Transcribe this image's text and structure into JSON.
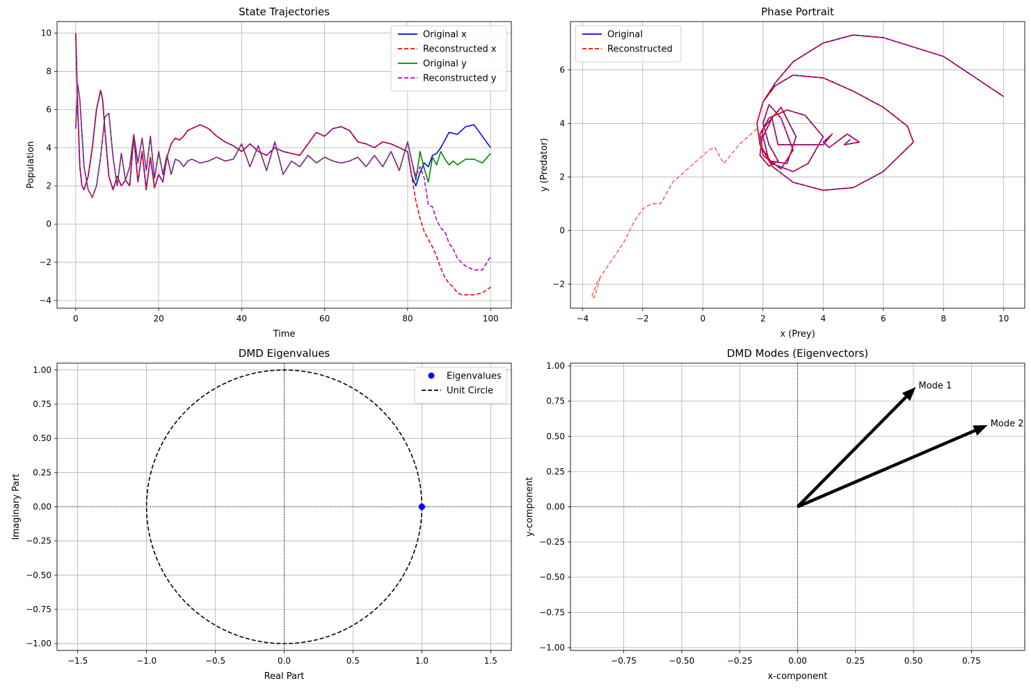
{
  "chart_data": [
    {
      "id": "state",
      "type": "line",
      "title": "State Trajectories",
      "xlabel": "Time",
      "ylabel": "Population",
      "xlim": [
        -4.5,
        105
      ],
      "ylim": [
        -4.4,
        10.6
      ],
      "xticks": [
        0,
        20,
        40,
        60,
        80,
        100
      ],
      "yticks": [
        -4,
        -2,
        0,
        2,
        4,
        6,
        8,
        10
      ],
      "grid": true,
      "legend": "top-right",
      "series": [
        {
          "name": "Original x",
          "color": "#0000ff",
          "dash": "solid",
          "x": [
            0,
            0.5,
            1,
            1.5,
            2,
            3,
            4,
            5,
            6,
            6.5,
            7,
            8,
            9,
            10,
            11,
            12,
            13,
            14,
            15,
            16,
            17,
            18,
            19,
            20,
            21,
            22,
            23,
            24,
            25,
            26,
            27,
            28,
            30,
            32,
            34,
            36,
            38,
            40,
            42,
            44,
            46,
            48,
            50,
            52,
            54,
            56,
            58,
            60,
            62,
            64,
            66,
            68,
            70,
            72,
            74,
            76,
            78,
            80,
            81,
            82,
            83,
            84,
            85,
            86,
            87,
            88,
            89,
            90,
            92,
            94,
            96,
            98,
            100
          ],
          "y": [
            10,
            6,
            3,
            2,
            1.8,
            2.5,
            4,
            6,
            7,
            6.5,
            5,
            2.5,
            1.8,
            2.5,
            2,
            2.3,
            2,
            4.6,
            2.2,
            3.8,
            1.8,
            3.5,
            1.9,
            2.6,
            2.2,
            3.5,
            4.2,
            4.5,
            4.4,
            4.6,
            4.9,
            5,
            5.2,
            5,
            4.6,
            4.3,
            4.1,
            3.8,
            4.2,
            3.8,
            3.6,
            4,
            3.8,
            3.7,
            3.6,
            4.2,
            4.8,
            4.6,
            5,
            5.1,
            4.9,
            4.3,
            4.2,
            4,
            4.3,
            4.2,
            4,
            3.8,
            2.5,
            2,
            2.7,
            3.2,
            3,
            3.6,
            3.7,
            4,
            4.4,
            4.8,
            4.7,
            5.1,
            5.2,
            4.6,
            4
          ]
        },
        {
          "name": "Reconstructed x",
          "color": "#ff0000",
          "dash": "dashed",
          "x": [
            0,
            0.5,
            1,
            1.5,
            2,
            3,
            4,
            5,
            6,
            6.5,
            7,
            8,
            9,
            10,
            11,
            12,
            13,
            14,
            15,
            16,
            17,
            18,
            19,
            20,
            21,
            22,
            23,
            24,
            25,
            26,
            27,
            28,
            30,
            32,
            34,
            36,
            38,
            40,
            42,
            44,
            46,
            48,
            50,
            52,
            54,
            56,
            58,
            60,
            62,
            64,
            66,
            68,
            70,
            72,
            74,
            76,
            78,
            80,
            81,
            82,
            83,
            84,
            85,
            86,
            87,
            88,
            89,
            90,
            91,
            92,
            93,
            94,
            96,
            98,
            100
          ],
          "y": [
            10,
            6,
            3,
            2,
            1.8,
            2.5,
            4,
            6,
            7,
            6.5,
            5,
            2.5,
            1.8,
            2.5,
            2,
            2.3,
            2,
            4.6,
            2.2,
            3.8,
            1.8,
            3.5,
            1.9,
            2.6,
            2.2,
            3.5,
            4.2,
            4.5,
            4.4,
            4.6,
            4.9,
            5,
            5.2,
            5,
            4.6,
            4.3,
            4.1,
            3.8,
            4.2,
            3.8,
            3.6,
            4,
            3.8,
            3.7,
            3.6,
            4.2,
            4.8,
            4.6,
            5,
            5.1,
            4.9,
            4.3,
            4.2,
            4,
            4.3,
            4.2,
            4,
            3.8,
            2.5,
            1.2,
            0.3,
            -0.4,
            -0.8,
            -1.2,
            -1.7,
            -2.3,
            -2.8,
            -3.1,
            -3.3,
            -3.6,
            -3.7,
            -3.7,
            -3.7,
            -3.6,
            -3.3
          ]
        },
        {
          "name": "Original y",
          "color": "#008000",
          "dash": "solid",
          "x": [
            0,
            0.5,
            1,
            2,
            3,
            4,
            5,
            6,
            7,
            8,
            9,
            10,
            11,
            12,
            13,
            14,
            15,
            16,
            17,
            18,
            19,
            20,
            21,
            22,
            23,
            24,
            25,
            26,
            27,
            28,
            30,
            32,
            34,
            36,
            38,
            40,
            42,
            44,
            46,
            48,
            50,
            52,
            54,
            56,
            58,
            60,
            62,
            64,
            66,
            68,
            70,
            72,
            74,
            76,
            78,
            80,
            81,
            82,
            83,
            84,
            85,
            86,
            87,
            88,
            89,
            90,
            91,
            92,
            94,
            96,
            98,
            100
          ],
          "y": [
            5,
            7.3,
            6.5,
            3,
            1.8,
            1.4,
            2,
            3.5,
            5.6,
            5.8,
            3.5,
            2,
            3.7,
            2.3,
            3,
            4.7,
            3.2,
            4.5,
            2.8,
            4.6,
            2.4,
            3.8,
            2.6,
            3.6,
            2.6,
            3.4,
            3.3,
            3,
            3.3,
            3.4,
            3.2,
            3.3,
            3.5,
            3.3,
            3.4,
            4.2,
            3,
            4.1,
            2.8,
            4.3,
            2.6,
            3.3,
            3,
            3.6,
            3.2,
            3.5,
            3.3,
            3.2,
            3.3,
            3.5,
            3,
            3.6,
            3,
            3.8,
            2.8,
            4.3,
            3.3,
            2.3,
            3.8,
            2.9,
            2.2,
            3.5,
            3.1,
            3.8,
            3.4,
            3.1,
            3.3,
            3.1,
            3.4,
            3.4,
            3.2,
            3.7
          ]
        },
        {
          "name": "Reconstructed y",
          "color": "#bf00bf",
          "dash": "dashed",
          "x": [
            0,
            0.5,
            1,
            2,
            3,
            4,
            5,
            6,
            7,
            8,
            9,
            10,
            11,
            12,
            13,
            14,
            15,
            16,
            17,
            18,
            19,
            20,
            21,
            22,
            23,
            24,
            25,
            26,
            27,
            28,
            30,
            32,
            34,
            36,
            38,
            40,
            42,
            44,
            46,
            48,
            50,
            52,
            54,
            56,
            58,
            60,
            62,
            64,
            66,
            68,
            70,
            72,
            74,
            76,
            78,
            80,
            81,
            82,
            83,
            84,
            85,
            86,
            87,
            88,
            89,
            90,
            91,
            92,
            93,
            94,
            96,
            98,
            100
          ],
          "y": [
            5,
            7.3,
            6.5,
            3,
            1.8,
            1.4,
            2,
            3.5,
            5.6,
            5.8,
            3.5,
            2,
            3.7,
            2.3,
            3,
            4.7,
            3.2,
            4.5,
            2.8,
            4.6,
            2.4,
            3.8,
            2.6,
            3.6,
            2.6,
            3.4,
            3.3,
            3,
            3.3,
            3.4,
            3.2,
            3.3,
            3.5,
            3.3,
            3.4,
            4.2,
            3,
            4.1,
            2.8,
            4.3,
            2.6,
            3.3,
            3,
            3.6,
            3.2,
            3.5,
            3.3,
            3.2,
            3.3,
            3.5,
            3,
            3.6,
            3,
            3.8,
            2.8,
            4.3,
            3.3,
            2.5,
            3,
            2.4,
            1,
            0.9,
            0.2,
            -0.2,
            -0.4,
            -1,
            -1.3,
            -1.8,
            -2,
            -2.2,
            -2.4,
            -2.4,
            -1.7
          ]
        }
      ]
    },
    {
      "id": "phase",
      "type": "line",
      "title": "Phase Portrait",
      "xlabel": "x (Prey)",
      "ylabel": "y (Predator)",
      "xlim": [
        -4.4,
        10.7
      ],
      "ylim": [
        -2.9,
        7.8
      ],
      "xticks": [
        -4,
        -2,
        0,
        2,
        4,
        6,
        8,
        10
      ],
      "yticks": [
        -2,
        0,
        2,
        4,
        6
      ],
      "grid": true,
      "legend": "top-left",
      "series": [
        {
          "name": "Original",
          "color": "#0000ff",
          "dash": "solid",
          "x": [
            10,
            8,
            6,
            5,
            4,
            3,
            2.4,
            2,
            1.8,
            1.9,
            2.3,
            3,
            4,
            5,
            6,
            7,
            6.8,
            6,
            5,
            4,
            3,
            2.4,
            2,
            1.8,
            1.9,
            2.3,
            3,
            3.5,
            4,
            3.4,
            2.8,
            2.2,
            1.9,
            2,
            2.6,
            3,
            2.6,
            2.2,
            2,
            2.2,
            2.5,
            2.2,
            1.9,
            2,
            2.6,
            3.1,
            2.8,
            2.2,
            2,
            2.3,
            2.5,
            4,
            4.3,
            4,
            4.2,
            4.8,
            5.2,
            4.7,
            4.9
          ],
          "y": [
            5,
            6.5,
            7.2,
            7.3,
            7,
            6.3,
            5.5,
            4.8,
            4,
            3.2,
            2.4,
            1.8,
            1.5,
            1.6,
            2.2,
            3.3,
            3.9,
            4.6,
            5.2,
            5.7,
            5.8,
            5.4,
            4.8,
            4,
            3.2,
            2.5,
            2.2,
            2.5,
            3.5,
            4.3,
            4.5,
            4.2,
            3.6,
            2.8,
            2.3,
            3,
            4.2,
            4.7,
            4,
            3.2,
            2.6,
            2.4,
            2.8,
            3.8,
            4.6,
            3.5,
            2.5,
            2.6,
            3.5,
            4.2,
            3.2,
            3.2,
            3.6,
            3.3,
            3.1,
            3.6,
            3.3,
            3.2,
            3.4
          ]
        },
        {
          "name": "Reconstructed",
          "color": "#ff0000",
          "dash": "dashed",
          "x": [
            10,
            8,
            6,
            5,
            4,
            3,
            2.4,
            2,
            1.8,
            1.9,
            2.3,
            3,
            4,
            5,
            6,
            7,
            6.8,
            6,
            5,
            4,
            3,
            2.4,
            2,
            1.8,
            1.9,
            2.3,
            3,
            3.5,
            4,
            3.4,
            2.8,
            2.2,
            1.9,
            2,
            2.6,
            3,
            2.6,
            2.2,
            2,
            2.2,
            2.5,
            2.2,
            1.9,
            2,
            2.6,
            3.1,
            2.8,
            2.2,
            2,
            2.3,
            2.5,
            4,
            4.3,
            4,
            4.2,
            4.8,
            5.2,
            4.7,
            4.9
          ],
          "y": [
            5,
            6.5,
            7.2,
            7.3,
            7,
            6.3,
            5.5,
            4.8,
            4,
            3.2,
            2.4,
            1.8,
            1.5,
            1.6,
            2.2,
            3.3,
            3.9,
            4.6,
            5.2,
            5.7,
            5.8,
            5.4,
            4.8,
            4,
            3.2,
            2.5,
            2.2,
            2.5,
            3.5,
            4.3,
            4.5,
            4.2,
            3.6,
            2.8,
            2.3,
            3,
            4.2,
            4.7,
            4,
            3.2,
            2.6,
            2.4,
            2.8,
            3.8,
            4.6,
            3.5,
            2.5,
            2.6,
            3.5,
            4.2,
            3.2,
            3.2,
            3.6,
            3.3,
            3.1,
            3.6,
            3.3,
            3.2,
            3.4
          ]
        },
        {
          "name": "",
          "color": "#ff6666",
          "dash": "dashed",
          "x": [
            1.8,
            1.2,
            0.7,
            0.4,
            0.2,
            -0.2,
            -0.6,
            -1.0,
            -1.4,
            -1.7,
            -2.0,
            -2.3,
            -2.6,
            -2.9,
            -3.2,
            -3.5,
            -3.7,
            -3.6,
            -3.4
          ],
          "y": [
            3.8,
            3.2,
            2.5,
            3.1,
            3.0,
            2.6,
            2.2,
            1.8,
            1.0,
            1.0,
            0.8,
            0.3,
            -0.4,
            -0.9,
            -1.4,
            -1.9,
            -2.5,
            -2.5,
            -1.7
          ]
        }
      ]
    },
    {
      "id": "eig",
      "type": "scatter",
      "title": "DMD Eigenvalues",
      "xlabel": "Real Part",
      "ylabel": "Imaginary Part",
      "xlim": [
        -1.65,
        1.65
      ],
      "ylim": [
        -1.05,
        1.05
      ],
      "xticks": [
        -1.5,
        -1.0,
        -0.5,
        0.0,
        0.5,
        1.0,
        1.5
      ],
      "yticks": [
        -1.0,
        -0.75,
        -0.5,
        -0.25,
        0.0,
        0.25,
        0.5,
        0.75,
        1.0
      ],
      "grid": true,
      "legend": "top-right",
      "points": {
        "name": "Eigenvalues",
        "color": "#0000ff",
        "x": [
          1.0,
          1.0
        ],
        "y": [
          0.0,
          0.0
        ]
      },
      "circle": {
        "name": "Unit Circle",
        "color": "#000000",
        "dash": "dashed",
        "radius": 1.0
      }
    },
    {
      "id": "modes",
      "type": "quiver",
      "title": "DMD Modes (Eigenvectors)",
      "xlabel": "x-component",
      "ylabel": "y-component",
      "xlim": [
        -0.98,
        0.98
      ],
      "ylim": [
        -1.02,
        1.02
      ],
      "xticks": [
        -0.75,
        -0.5,
        -0.25,
        0.0,
        0.25,
        0.5,
        0.75
      ],
      "yticks": [
        -1.0,
        -0.75,
        -0.5,
        -0.25,
        0.0,
        0.25,
        0.5,
        0.75,
        1.0
      ],
      "grid": true,
      "vectors": [
        {
          "label": "Mode 1",
          "dx": 0.51,
          "dy": 0.85
        },
        {
          "label": "Mode 2",
          "dx": 0.82,
          "dy": 0.58
        }
      ]
    }
  ]
}
